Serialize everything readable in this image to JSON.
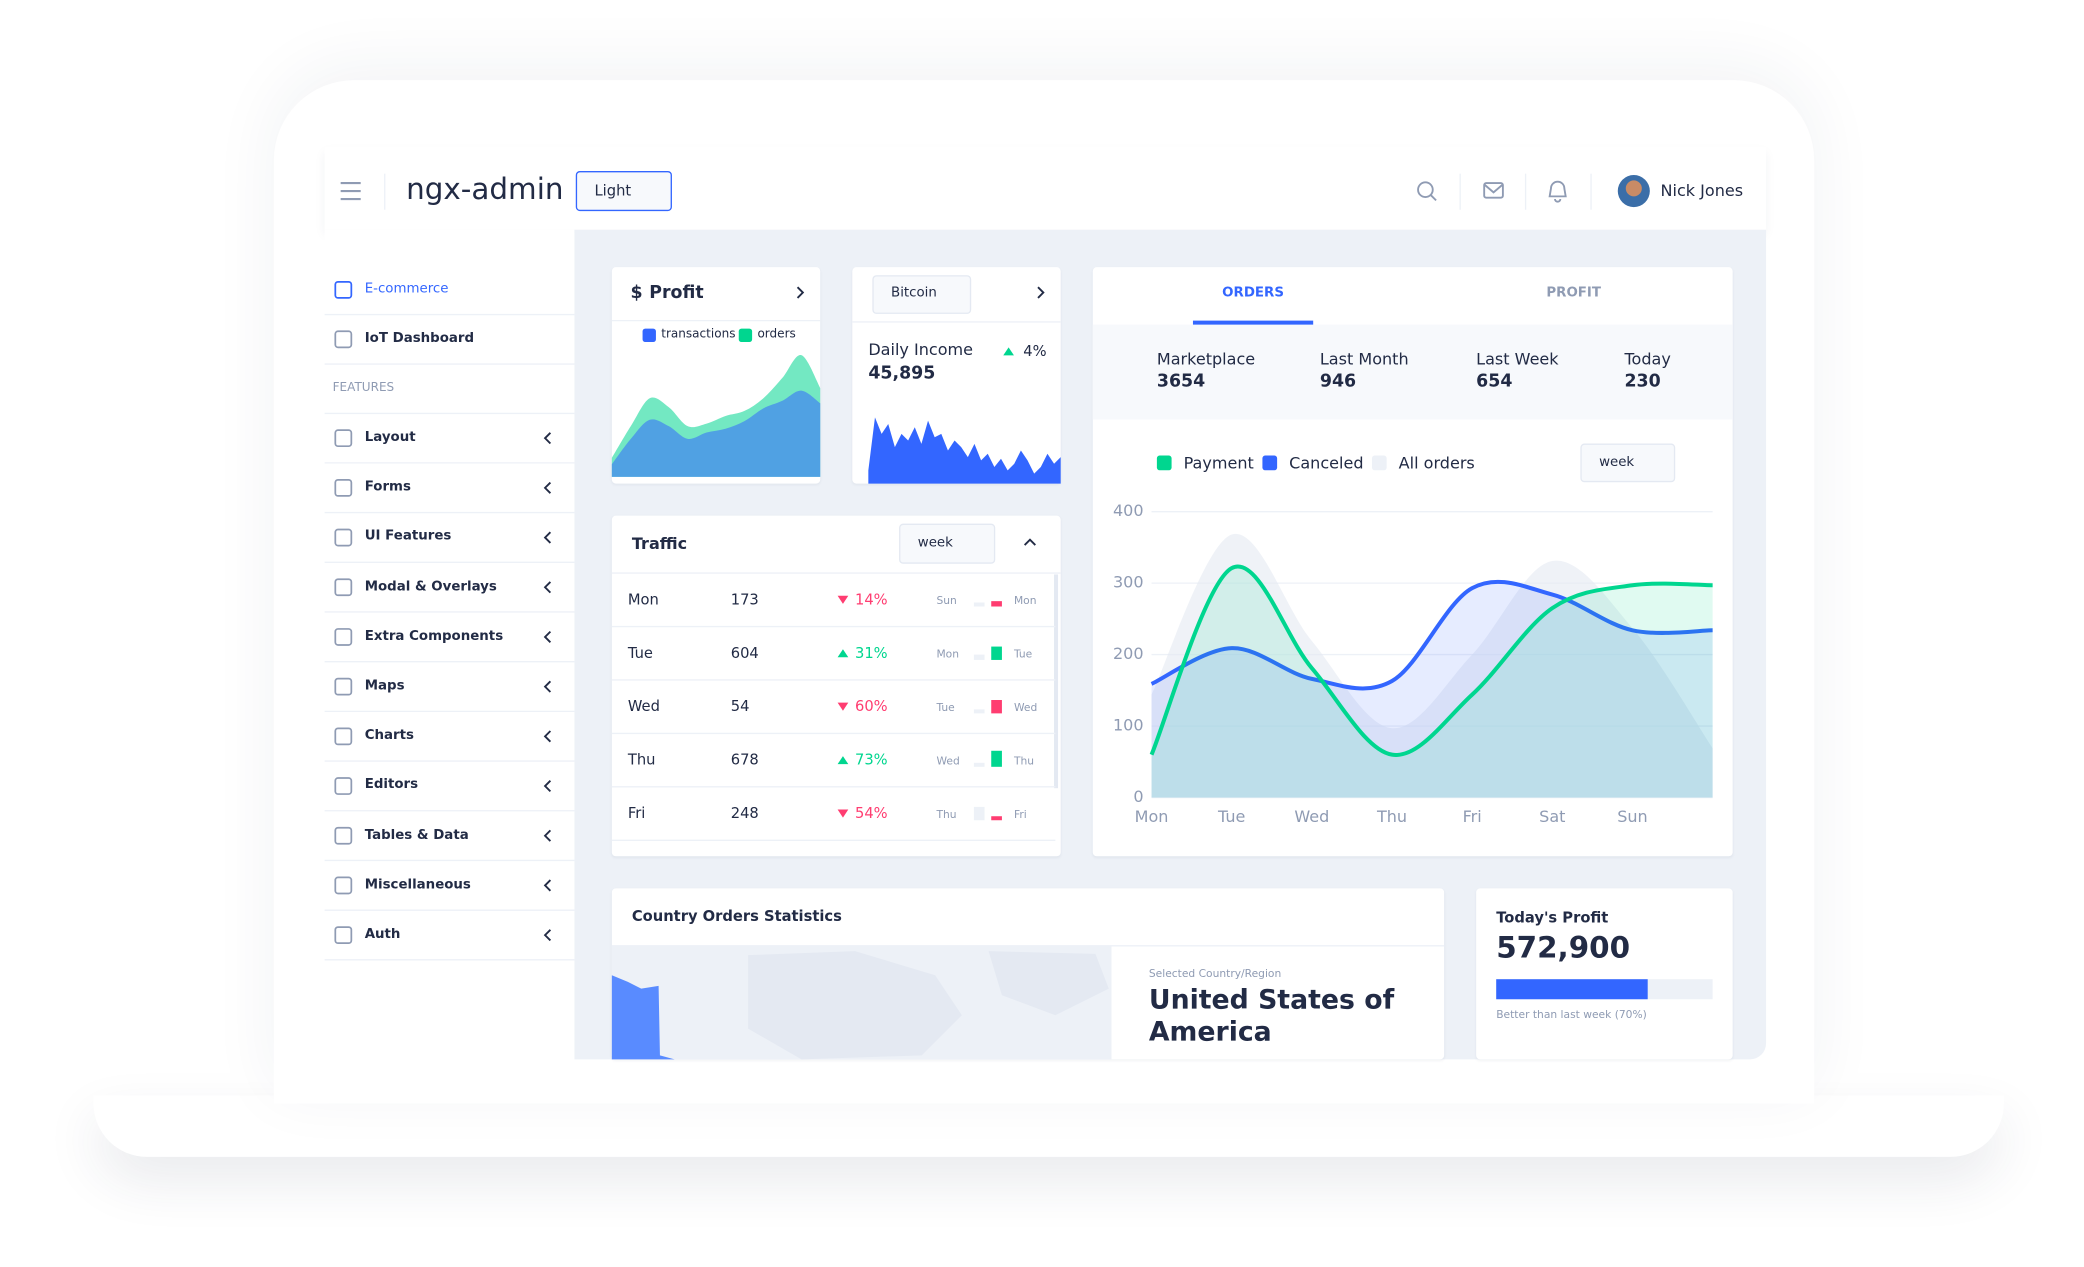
{
  "header": {
    "title": "ngx-admin",
    "theme": "Light",
    "user": "Nick Jones"
  },
  "sidebar": {
    "items": [
      "E-commerce",
      "IoT Dashboard"
    ],
    "section": "FEATURES",
    "features": [
      "Layout",
      "Forms",
      "UI Features",
      "Modal & Overlays",
      "Extra Components",
      "Maps",
      "Charts",
      "Editors",
      "Tables & Data",
      "Miscellaneous",
      "Auth"
    ]
  },
  "profit_card": {
    "currency": "$",
    "title": "Profit"
  },
  "bitcoin_card": {
    "currency": "Bitcoin",
    "label": "Daily Income",
    "value": "45,895",
    "change": "4%"
  },
  "traffic": {
    "title": "Traffic",
    "period": "week",
    "rows": [
      {
        "day": "Mon",
        "value": 173,
        "change": "14%",
        "direction": "down",
        "prev_label": "Sun",
        "prev_bar": 3,
        "bar": 4
      },
      {
        "day": "Tue",
        "value": 604,
        "change": "31%",
        "direction": "up",
        "prev_label": "Mon",
        "prev_bar": 4,
        "bar": 10
      },
      {
        "day": "Wed",
        "value": 54,
        "change": "60%",
        "direction": "down",
        "prev_label": "Tue",
        "prev_bar": 3,
        "bar": 10
      },
      {
        "day": "Thu",
        "value": 678,
        "change": "73%",
        "direction": "up",
        "prev_label": "Wed",
        "prev_bar": 3,
        "bar": 12
      },
      {
        "day": "Fri",
        "value": 248,
        "change": "54%",
        "direction": "down",
        "prev_label": "Thu",
        "prev_bar": 10,
        "bar": 3
      }
    ]
  },
  "orders": {
    "tabs": [
      "ORDERS",
      "PROFIT"
    ],
    "stats": [
      {
        "label": "Marketplace",
        "value": "3654"
      },
      {
        "label": "Last Month",
        "value": "946"
      },
      {
        "label": "Last Week",
        "value": "654"
      },
      {
        "label": "Today",
        "value": "230"
      }
    ],
    "period": "week"
  },
  "country": {
    "title": "Country Orders Statistics",
    "caption": "Selected Country/Region",
    "country": "United States of America"
  },
  "todays_profit": {
    "title": "Today's Profit",
    "value": "572,900",
    "progress": 70,
    "caption": "Better than last week (70%)"
  },
  "chart_data": [
    {
      "type": "area",
      "ylim": [
        0,
        100
      ],
      "series": [
        {
          "name": "orders",
          "color": "#00d68f",
          "values": [
            15,
            40,
            62,
            55,
            40,
            42,
            48,
            52,
            62,
            78,
            96,
            70
          ]
        },
        {
          "name": "transactions",
          "color": "#3366ff",
          "values": [
            10,
            30,
            45,
            40,
            30,
            35,
            38,
            44,
            54,
            60,
            68,
            58
          ]
        }
      ]
    },
    {
      "type": "area",
      "ylim": [
        0,
        50
      ],
      "color": "#3366ff",
      "values": [
        8,
        40,
        30,
        36,
        22,
        30,
        26,
        34,
        24,
        38,
        28,
        30,
        20,
        26,
        22,
        16,
        24,
        14,
        18,
        10,
        15,
        8,
        12,
        20,
        14,
        6,
        10,
        18,
        12,
        16
      ]
    },
    {
      "type": "line",
      "categories": [
        "Mon",
        "Tue",
        "Wed",
        "Thu",
        "Fri",
        "Sat",
        "Sun",
        null
      ],
      "ylim": [
        0,
        400
      ],
      "yticks": [
        0,
        100,
        200,
        300,
        400
      ],
      "grid": true,
      "series": [
        {
          "name": "All orders",
          "color": "#e4e9f2",
          "line": false,
          "values": [
            144,
            368,
            219,
            97,
            200,
            331,
            237,
            69
          ]
        },
        {
          "name": "Canceled",
          "color": "#3366ff",
          "values": [
            159,
            209,
            166,
            163,
            293,
            284,
            234,
            234
          ]
        },
        {
          "name": "Payment",
          "color": "#00d68f",
          "values": [
            60,
            321,
            181,
            60,
            144,
            265,
            297,
            297
          ]
        }
      ]
    }
  ]
}
